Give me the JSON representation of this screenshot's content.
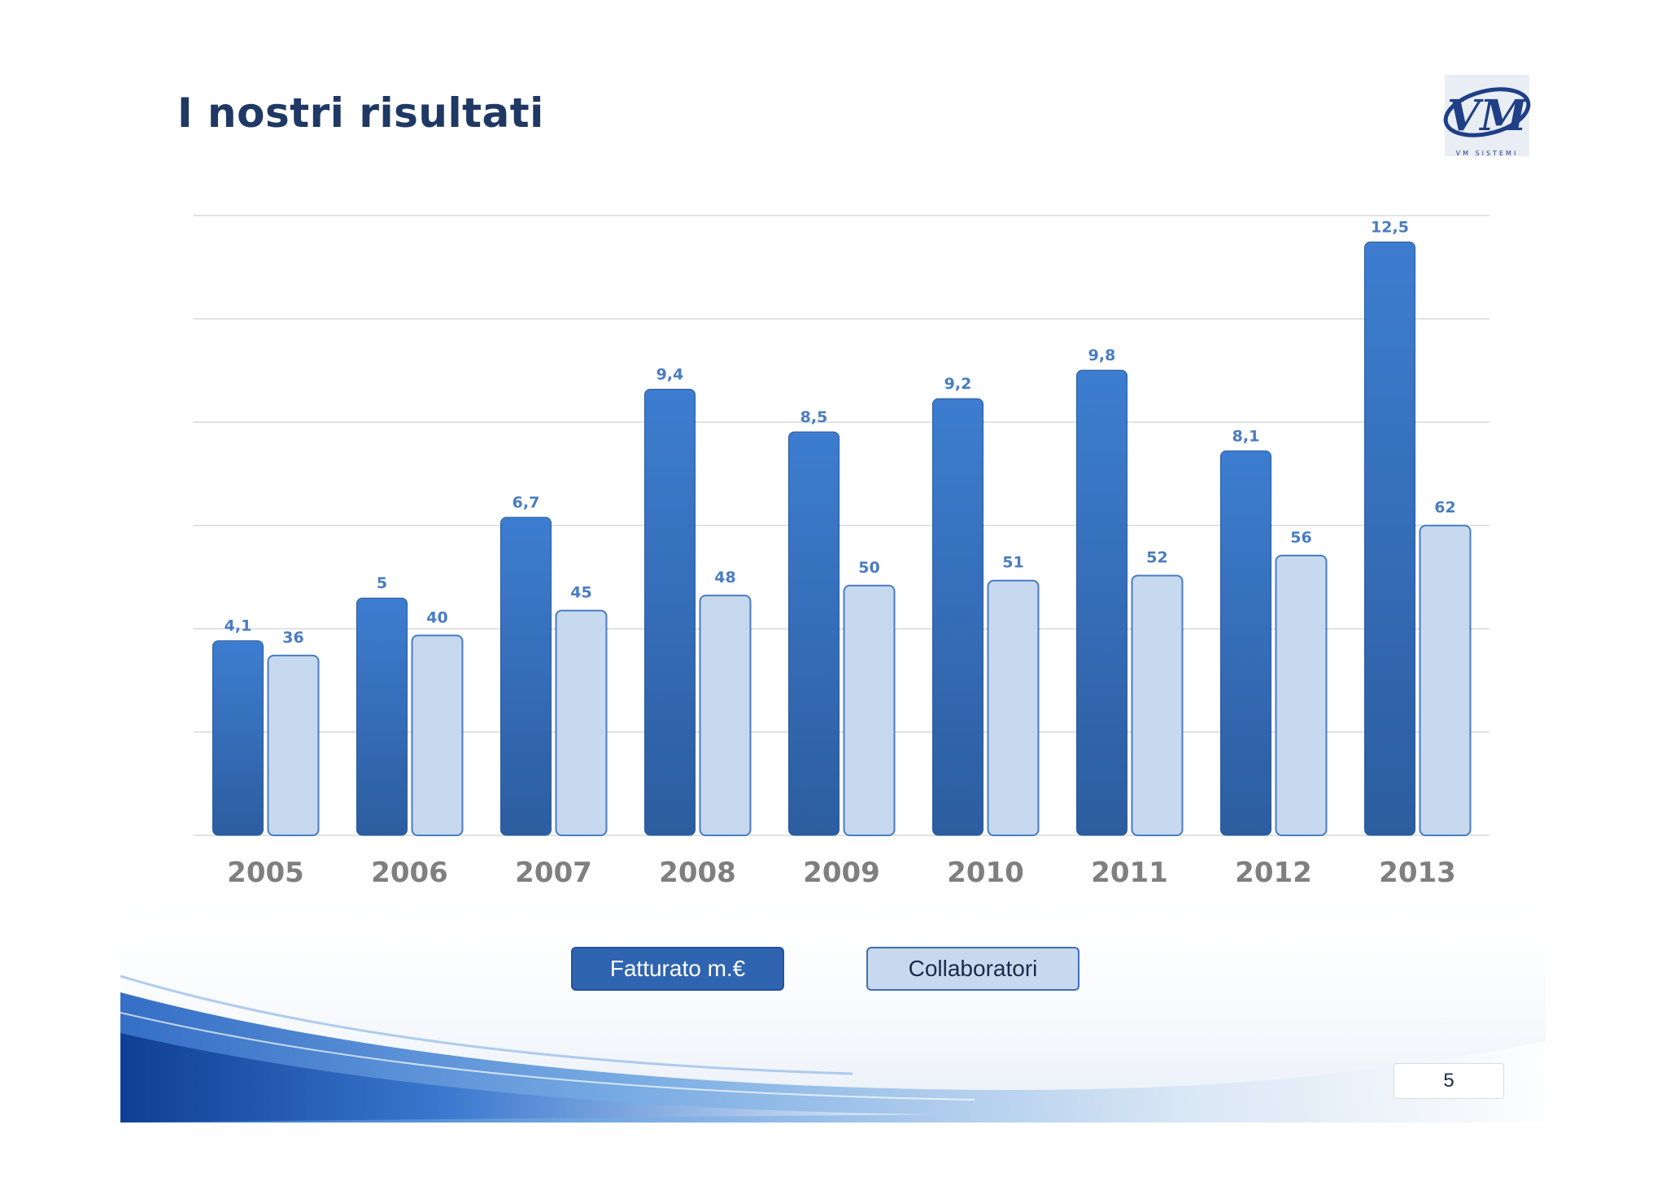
{
  "slide": {
    "title": "I nostri risultati",
    "page_number": "5",
    "logo": {
      "text": "VM",
      "subtitle": "VM SISTEMI"
    }
  },
  "legend": {
    "fatturato": "Fatturato m.€",
    "collaboratori": "Collaboratori"
  },
  "colors": {
    "title": "#1f3864",
    "bar_dark_top": "#3d7dd0",
    "bar_dark_bottom": "#2c5d9f",
    "bar_light": "#c7d9ef",
    "bar_light_border": "#4a7cc2",
    "value_label": "#4a7cc2",
    "category_label": "#7f7f7f",
    "gridline": "#d9d9d9"
  },
  "chart_data": {
    "type": "bar",
    "categories": [
      "2005",
      "2006",
      "2007",
      "2008",
      "2009",
      "2010",
      "2011",
      "2012",
      "2013"
    ],
    "series": [
      {
        "name": "Fatturato m.€",
        "values": [
          4.1,
          5,
          6.7,
          9.4,
          8.5,
          9.2,
          9.8,
          8.1,
          12.5
        ],
        "labels": [
          "4,1",
          "5",
          "6,7",
          "9,4",
          "8,5",
          "9,2",
          "9,8",
          "8,1",
          "12,5"
        ]
      },
      {
        "name": "Collaboratori",
        "values": [
          36,
          40,
          45,
          48,
          50,
          51,
          52,
          56,
          62
        ],
        "labels": [
          "36",
          "40",
          "45",
          "48",
          "50",
          "51",
          "52",
          "56",
          "62"
        ]
      }
    ],
    "title": "",
    "xlabel": "",
    "ylabel": "",
    "grid": true,
    "legend_position": "bottom"
  }
}
